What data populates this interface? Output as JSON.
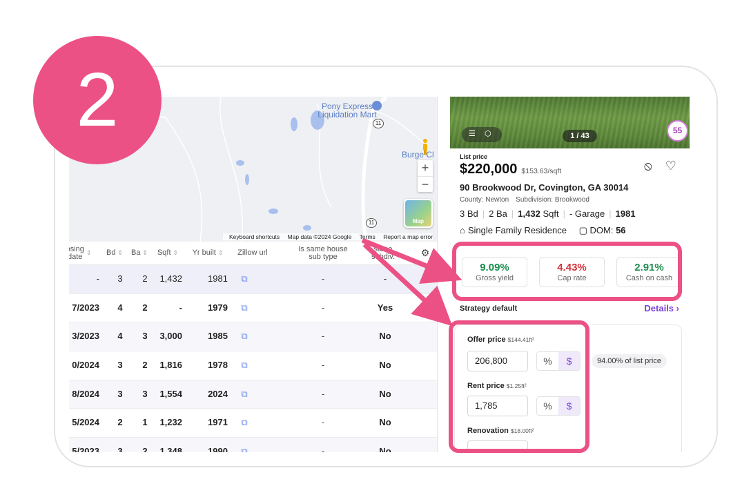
{
  "step_number": "2",
  "map": {
    "place_label": "Pony Express\nLiquidation Mart",
    "place_label_line1": "Pony Express",
    "place_label_line2": "Liquidation Mart",
    "side_label": "Burge Cl",
    "route_shield": "11",
    "zoom_in": "+",
    "zoom_out": "−",
    "thumb_label": "Map",
    "attribution": {
      "keyboard": "Keyboard shortcuts",
      "data": "Map data ©2024 Google",
      "terms": "Terms",
      "report": "Report a map error"
    }
  },
  "table": {
    "headers": {
      "closing_date": "osing\ndate",
      "closing_line1": "osing",
      "closing_line2": "date",
      "bd": "Bd",
      "ba": "Ba",
      "sqft": "Sqft",
      "yr_built": "Yr built",
      "zillow": "Zillow url",
      "same_house_1": "Is same house",
      "same_house_2": "sub type",
      "same_sub_1": "same",
      "same_sub_2": "subdiv."
    },
    "rows": [
      {
        "date": "-",
        "bd": "3",
        "ba": "2",
        "sqft": "1,432",
        "yr": "1981",
        "same_house": "-",
        "same_sub": "-"
      },
      {
        "date": "7/2023",
        "bd": "4",
        "ba": "2",
        "sqft": "-",
        "yr": "1979",
        "same_house": "-",
        "same_sub": "Yes"
      },
      {
        "date": "3/2023",
        "bd": "4",
        "ba": "3",
        "sqft": "3,000",
        "yr": "1985",
        "same_house": "-",
        "same_sub": "No"
      },
      {
        "date": "0/2024",
        "bd": "3",
        "ba": "2",
        "sqft": "1,816",
        "yr": "1978",
        "same_house": "-",
        "same_sub": "No"
      },
      {
        "date": "8/2024",
        "bd": "3",
        "ba": "3",
        "sqft": "1,554",
        "yr": "2024",
        "same_house": "-",
        "same_sub": "No"
      },
      {
        "date": "5/2024",
        "bd": "2",
        "ba": "1",
        "sqft": "1,232",
        "yr": "1971",
        "same_house": "-",
        "same_sub": "No"
      },
      {
        "date": "5/2023",
        "bd": "3",
        "ba": "2",
        "sqft": "1,348",
        "yr": "1990",
        "same_house": "-",
        "same_sub": "No"
      }
    ]
  },
  "panel": {
    "photo_counter": "1 / 43",
    "score": "55",
    "list_price_label": "List price",
    "price": "$220,000",
    "price_per_sqft": "$153.63/sqft",
    "address": "90 Brookwood Dr, Covington, GA 30014",
    "county": "County: Newton",
    "subdivision": "Subdivision: Brookwood",
    "beds": "3 Bd",
    "baths": "2 Ba",
    "sqft": "1,432",
    "sqft_unit": "Sqft",
    "garage": "- Garage",
    "year": "1981",
    "property_type": "Single Family Residence",
    "dom_label": "DOM:",
    "dom_value": "56",
    "metrics": [
      {
        "value": "9.09%",
        "label": "Gross yield",
        "color": "#1e8e4f"
      },
      {
        "value": "4.43%",
        "label": "Cap rate",
        "color": "#d4323a"
      },
      {
        "value": "2.91%",
        "label": "Cash on cash",
        "color": "#1e8e4f"
      }
    ],
    "strategy_label": "Strategy default",
    "details_label": "Details",
    "offer_price": {
      "label": "Offer price",
      "per_sqft": "$144.41ft²",
      "value": "206,800",
      "chip": "94.00% of list price"
    },
    "rent_price": {
      "label": "Rent price",
      "per_sqft": "$1.25ft²",
      "value": "1,785"
    },
    "renovation": {
      "label": "Renovation",
      "per_sqft": "$18.00ft²"
    },
    "pct_symbol": "%",
    "usd_symbol": "$"
  },
  "colors": {
    "accent": "#ec5186",
    "purple": "#7b3fd8"
  }
}
